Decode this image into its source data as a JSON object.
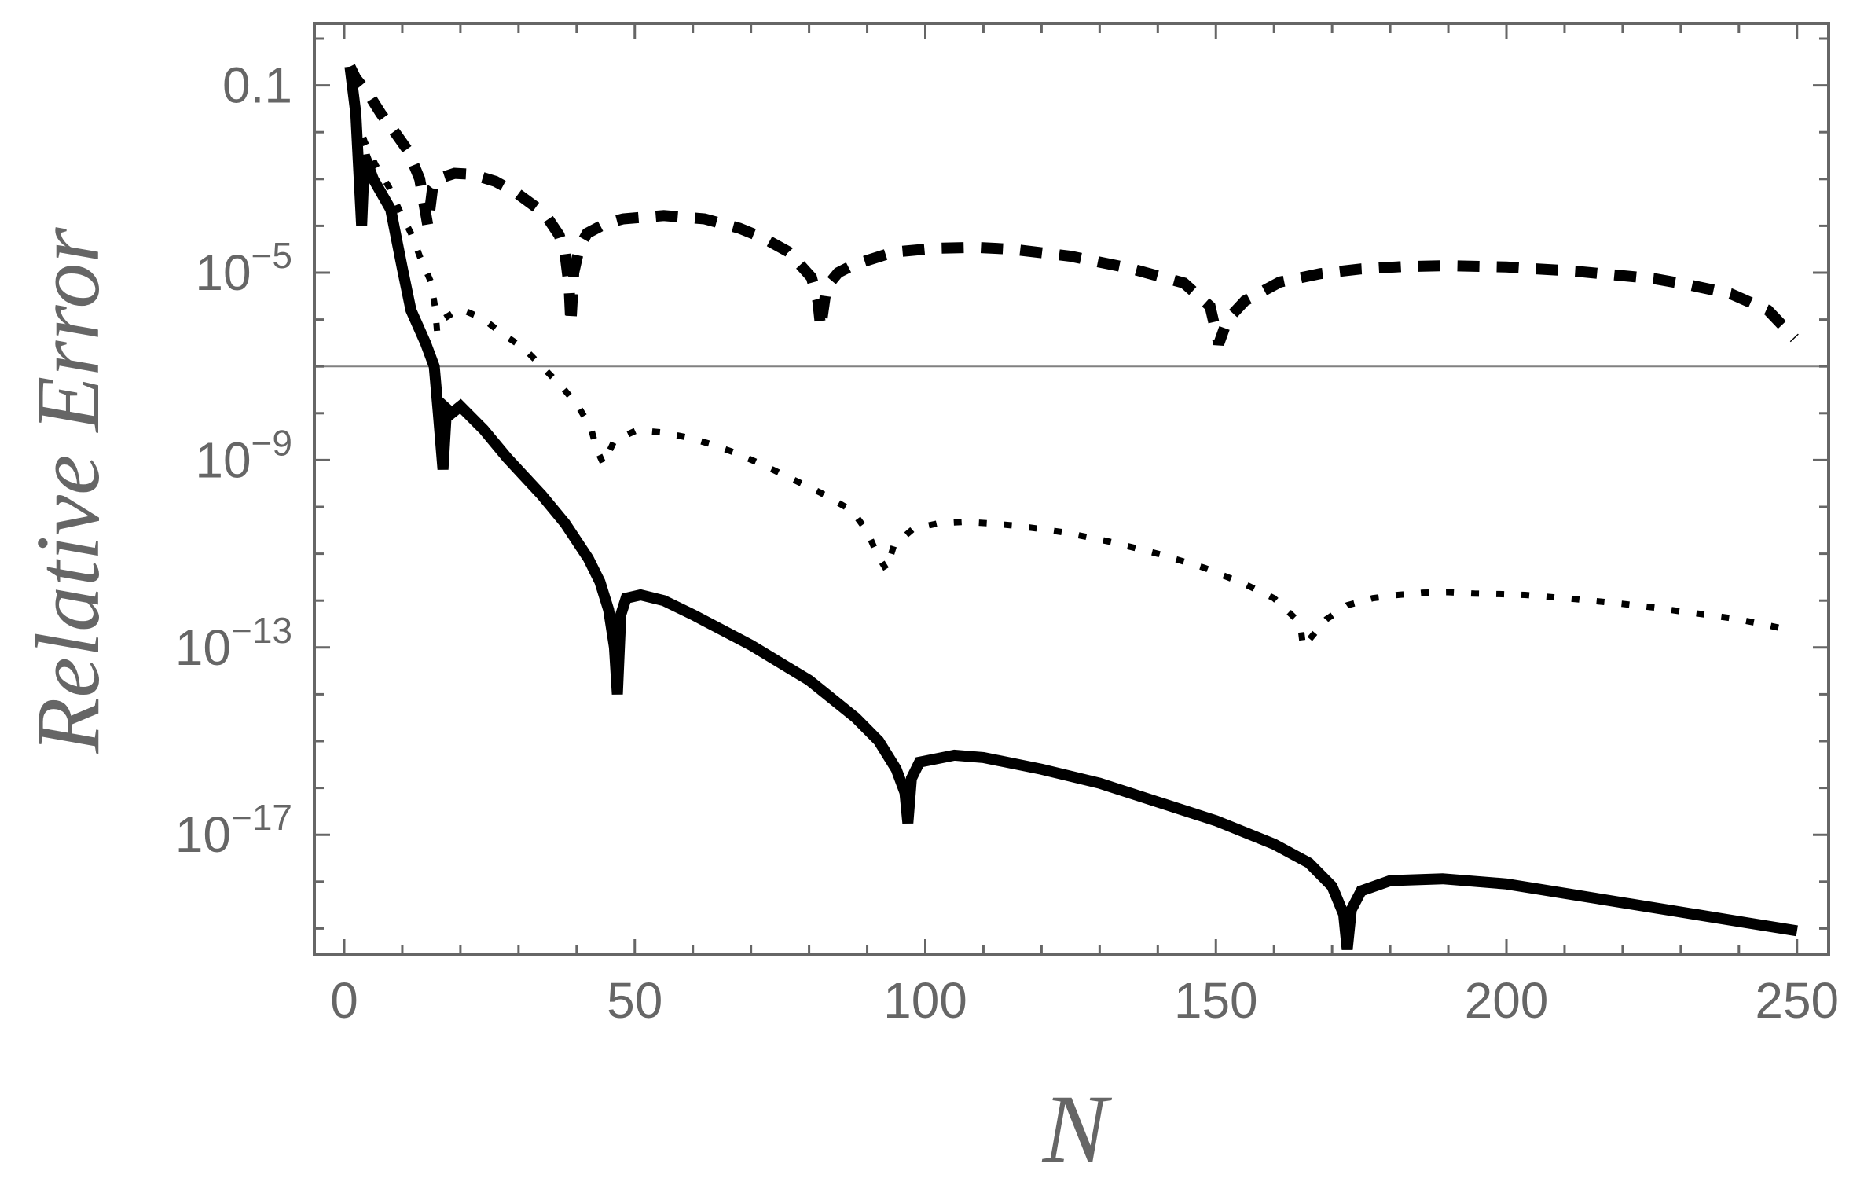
{
  "chart_data": {
    "type": "line",
    "title": "",
    "xlabel": "N",
    "ylabel": "Relative Error",
    "yscale": "log10",
    "xlim": [
      -5,
      255
    ],
    "ylim_log10": [
      -19.57,
      0.32
    ],
    "grid": false,
    "legend": null,
    "x_ticks": [
      0,
      50,
      100,
      150,
      200,
      250
    ],
    "x_tick_labels": [
      "0",
      "50",
      "100",
      "150",
      "200",
      "250"
    ],
    "x_minor_tick_step": 10,
    "y_ticks_log10": [
      -1,
      -5,
      -9,
      -13,
      -17
    ],
    "y_tick_labels": [
      {
        "base": "0.1",
        "exp": ""
      },
      {
        "base": "10",
        "exp": "−5"
      },
      {
        "base": "10",
        "exp": "−9"
      },
      {
        "base": "10",
        "exp": "−13"
      },
      {
        "base": "10",
        "exp": "−17"
      }
    ],
    "y_minor_ticks_log10_step": 1,
    "reference_line": {
      "y_log10": -7,
      "color": "#808080",
      "label": ""
    },
    "series": [
      {
        "name": "solid",
        "style": "solid",
        "color": "#000000",
        "points_log10": [
          [
            1,
            -0.6
          ],
          [
            2,
            -1.6
          ],
          [
            3,
            -4.0
          ],
          [
            3.5,
            -2.5
          ],
          [
            5,
            -3.0
          ],
          [
            8,
            -3.65
          ],
          [
            10,
            -4.9
          ],
          [
            11.5,
            -5.8
          ],
          [
            14,
            -6.5
          ],
          [
            15.5,
            -7.0
          ],
          [
            16.2,
            -8.0
          ],
          [
            17,
            -9.2
          ],
          [
            17.6,
            -7.9
          ],
          [
            18.5,
            -8.0
          ],
          [
            20,
            -7.85
          ],
          [
            24,
            -8.35
          ],
          [
            28,
            -8.95
          ],
          [
            34,
            -9.75
          ],
          [
            38,
            -10.35
          ],
          [
            42,
            -11.1
          ],
          [
            44,
            -11.6
          ],
          [
            45.5,
            -12.2
          ],
          [
            46.5,
            -13.0
          ],
          [
            47,
            -14.0
          ],
          [
            47.6,
            -12.3
          ],
          [
            48.5,
            -11.95
          ],
          [
            51,
            -11.88
          ],
          [
            55,
            -12.0
          ],
          [
            60,
            -12.3
          ],
          [
            70,
            -12.95
          ],
          [
            80,
            -13.7
          ],
          [
            88,
            -14.5
          ],
          [
            92,
            -15.0
          ],
          [
            95,
            -15.6
          ],
          [
            96.5,
            -16.1
          ],
          [
            97,
            -16.75
          ],
          [
            97.6,
            -15.8
          ],
          [
            99,
            -15.45
          ],
          [
            105,
            -15.3
          ],
          [
            110,
            -15.35
          ],
          [
            120,
            -15.6
          ],
          [
            130,
            -15.9
          ],
          [
            140,
            -16.3
          ],
          [
            150,
            -16.7
          ],
          [
            160,
            -17.2
          ],
          [
            166,
            -17.6
          ],
          [
            170,
            -18.1
          ],
          [
            172,
            -18.7
          ],
          [
            172.6,
            -19.45
          ],
          [
            173.3,
            -18.6
          ],
          [
            175,
            -18.2
          ],
          [
            180,
            -17.98
          ],
          [
            189,
            -17.94
          ],
          [
            200,
            -18.05
          ],
          [
            210,
            -18.25
          ],
          [
            220,
            -18.45
          ],
          [
            230,
            -18.65
          ],
          [
            240,
            -18.85
          ],
          [
            250,
            -19.05
          ]
        ]
      },
      {
        "name": "dashed",
        "style": "dashed",
        "color": "#000000",
        "points_log10": [
          [
            1,
            -0.6
          ],
          [
            2,
            -0.85
          ],
          [
            4,
            -1.15
          ],
          [
            6.3,
            -1.6
          ],
          [
            9,
            -2.05
          ],
          [
            11,
            -2.4
          ],
          [
            13,
            -3.0
          ],
          [
            14.4,
            -4.0
          ],
          [
            15.2,
            -3.2
          ],
          [
            16.5,
            -2.98
          ],
          [
            19,
            -2.88
          ],
          [
            22,
            -2.9
          ],
          [
            26,
            -3.05
          ],
          [
            29.7,
            -3.3
          ],
          [
            33,
            -3.6
          ],
          [
            35,
            -3.83
          ],
          [
            37,
            -4.2
          ],
          [
            38,
            -4.6
          ],
          [
            38.7,
            -5.3
          ],
          [
            39,
            -6.1
          ],
          [
            39.5,
            -5.0
          ],
          [
            40.5,
            -4.45
          ],
          [
            41.8,
            -4.16
          ],
          [
            45,
            -3.95
          ],
          [
            48,
            -3.85
          ],
          [
            55,
            -3.78
          ],
          [
            62,
            -3.85
          ],
          [
            68,
            -4.05
          ],
          [
            72,
            -4.25
          ],
          [
            76.4,
            -4.55
          ],
          [
            80.4,
            -5.1
          ],
          [
            81.5,
            -5.6
          ],
          [
            82,
            -6.18
          ],
          [
            83,
            -5.3
          ],
          [
            85,
            -5.0
          ],
          [
            87.7,
            -4.83
          ],
          [
            94.5,
            -4.56
          ],
          [
            101.6,
            -4.48
          ],
          [
            108.8,
            -4.46
          ],
          [
            115,
            -4.5
          ],
          [
            125,
            -4.65
          ],
          [
            135,
            -4.9
          ],
          [
            144.5,
            -5.22
          ],
          [
            149,
            -5.72
          ],
          [
            150.5,
            -6.52
          ],
          [
            152,
            -6.0
          ],
          [
            155,
            -5.6
          ],
          [
            161,
            -5.2
          ],
          [
            168,
            -5.02
          ],
          [
            175,
            -4.92
          ],
          [
            182,
            -4.87
          ],
          [
            190,
            -4.85
          ],
          [
            200,
            -4.88
          ],
          [
            212,
            -4.97
          ],
          [
            225.5,
            -5.13
          ],
          [
            231.8,
            -5.27
          ],
          [
            238.6,
            -5.45
          ],
          [
            245,
            -5.8
          ],
          [
            249.6,
            -6.4
          ]
        ]
      },
      {
        "name": "dotted",
        "style": "dotted",
        "color": "#000000",
        "points_log10": [
          [
            2,
            -1.6
          ],
          [
            3.5,
            -2.2
          ],
          [
            5.4,
            -2.7
          ],
          [
            7.7,
            -3.17
          ],
          [
            9.5,
            -3.67
          ],
          [
            11.5,
            -4.16
          ],
          [
            13.1,
            -4.68
          ],
          [
            14.9,
            -5.19
          ],
          [
            15.6,
            -5.71
          ],
          [
            16,
            -6.26
          ],
          [
            16.9,
            -6.0
          ],
          [
            19.9,
            -5.77
          ],
          [
            23.7,
            -5.97
          ],
          [
            27.3,
            -6.31
          ],
          [
            30.9,
            -6.61
          ],
          [
            34,
            -7.0
          ],
          [
            37.2,
            -7.4
          ],
          [
            40.1,
            -7.82
          ],
          [
            42.4,
            -8.29
          ],
          [
            43.5,
            -8.79
          ],
          [
            44.6,
            -9.08
          ],
          [
            46.5,
            -8.58
          ],
          [
            50.4,
            -8.36
          ],
          [
            54.7,
            -8.41
          ],
          [
            59.2,
            -8.52
          ],
          [
            63.4,
            -8.67
          ],
          [
            67.6,
            -8.86
          ],
          [
            72,
            -9.1
          ],
          [
            77,
            -9.4
          ],
          [
            82,
            -9.7
          ],
          [
            87.4,
            -10.08
          ],
          [
            90,
            -10.52
          ],
          [
            91.8,
            -11.04
          ],
          [
            93.3,
            -11.34
          ],
          [
            94.6,
            -10.82
          ],
          [
            97.9,
            -10.47
          ],
          [
            102.2,
            -10.35
          ],
          [
            106.6,
            -10.32
          ],
          [
            111,
            -10.35
          ],
          [
            115.4,
            -10.4
          ],
          [
            119.8,
            -10.47
          ],
          [
            124.2,
            -10.55
          ],
          [
            132,
            -10.75
          ],
          [
            140,
            -11.0
          ],
          [
            148,
            -11.3
          ],
          [
            155,
            -11.65
          ],
          [
            160,
            -11.95
          ],
          [
            163,
            -12.3
          ],
          [
            164.5,
            -12.48
          ],
          [
            165,
            -12.99
          ],
          [
            169,
            -12.4
          ],
          [
            172.6,
            -12.1
          ],
          [
            177,
            -11.95
          ],
          [
            181.3,
            -11.88
          ],
          [
            185.7,
            -11.83
          ],
          [
            190,
            -11.82
          ],
          [
            194.5,
            -11.85
          ],
          [
            198.8,
            -11.86
          ],
          [
            203.2,
            -11.88
          ],
          [
            212,
            -11.97
          ],
          [
            220,
            -12.07
          ],
          [
            225.5,
            -12.15
          ],
          [
            230,
            -12.23
          ],
          [
            234.4,
            -12.3
          ],
          [
            238.9,
            -12.38
          ],
          [
            243.2,
            -12.48
          ],
          [
            247.7,
            -12.6
          ]
        ]
      }
    ]
  },
  "axes": {
    "xlabel": "N",
    "ylabel": "Relative Error",
    "axis_color": "#666666",
    "reference_line_color": "#808080",
    "line_color": "#000000"
  }
}
